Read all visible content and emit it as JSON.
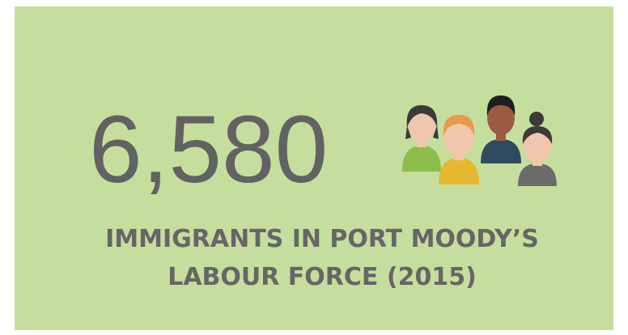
{
  "stat": {
    "value": "6,580",
    "label_lines": [
      "IMMIGRANTS IN PORT MOODY’S",
      "LABOUR FORCE (2015)"
    ]
  }
}
